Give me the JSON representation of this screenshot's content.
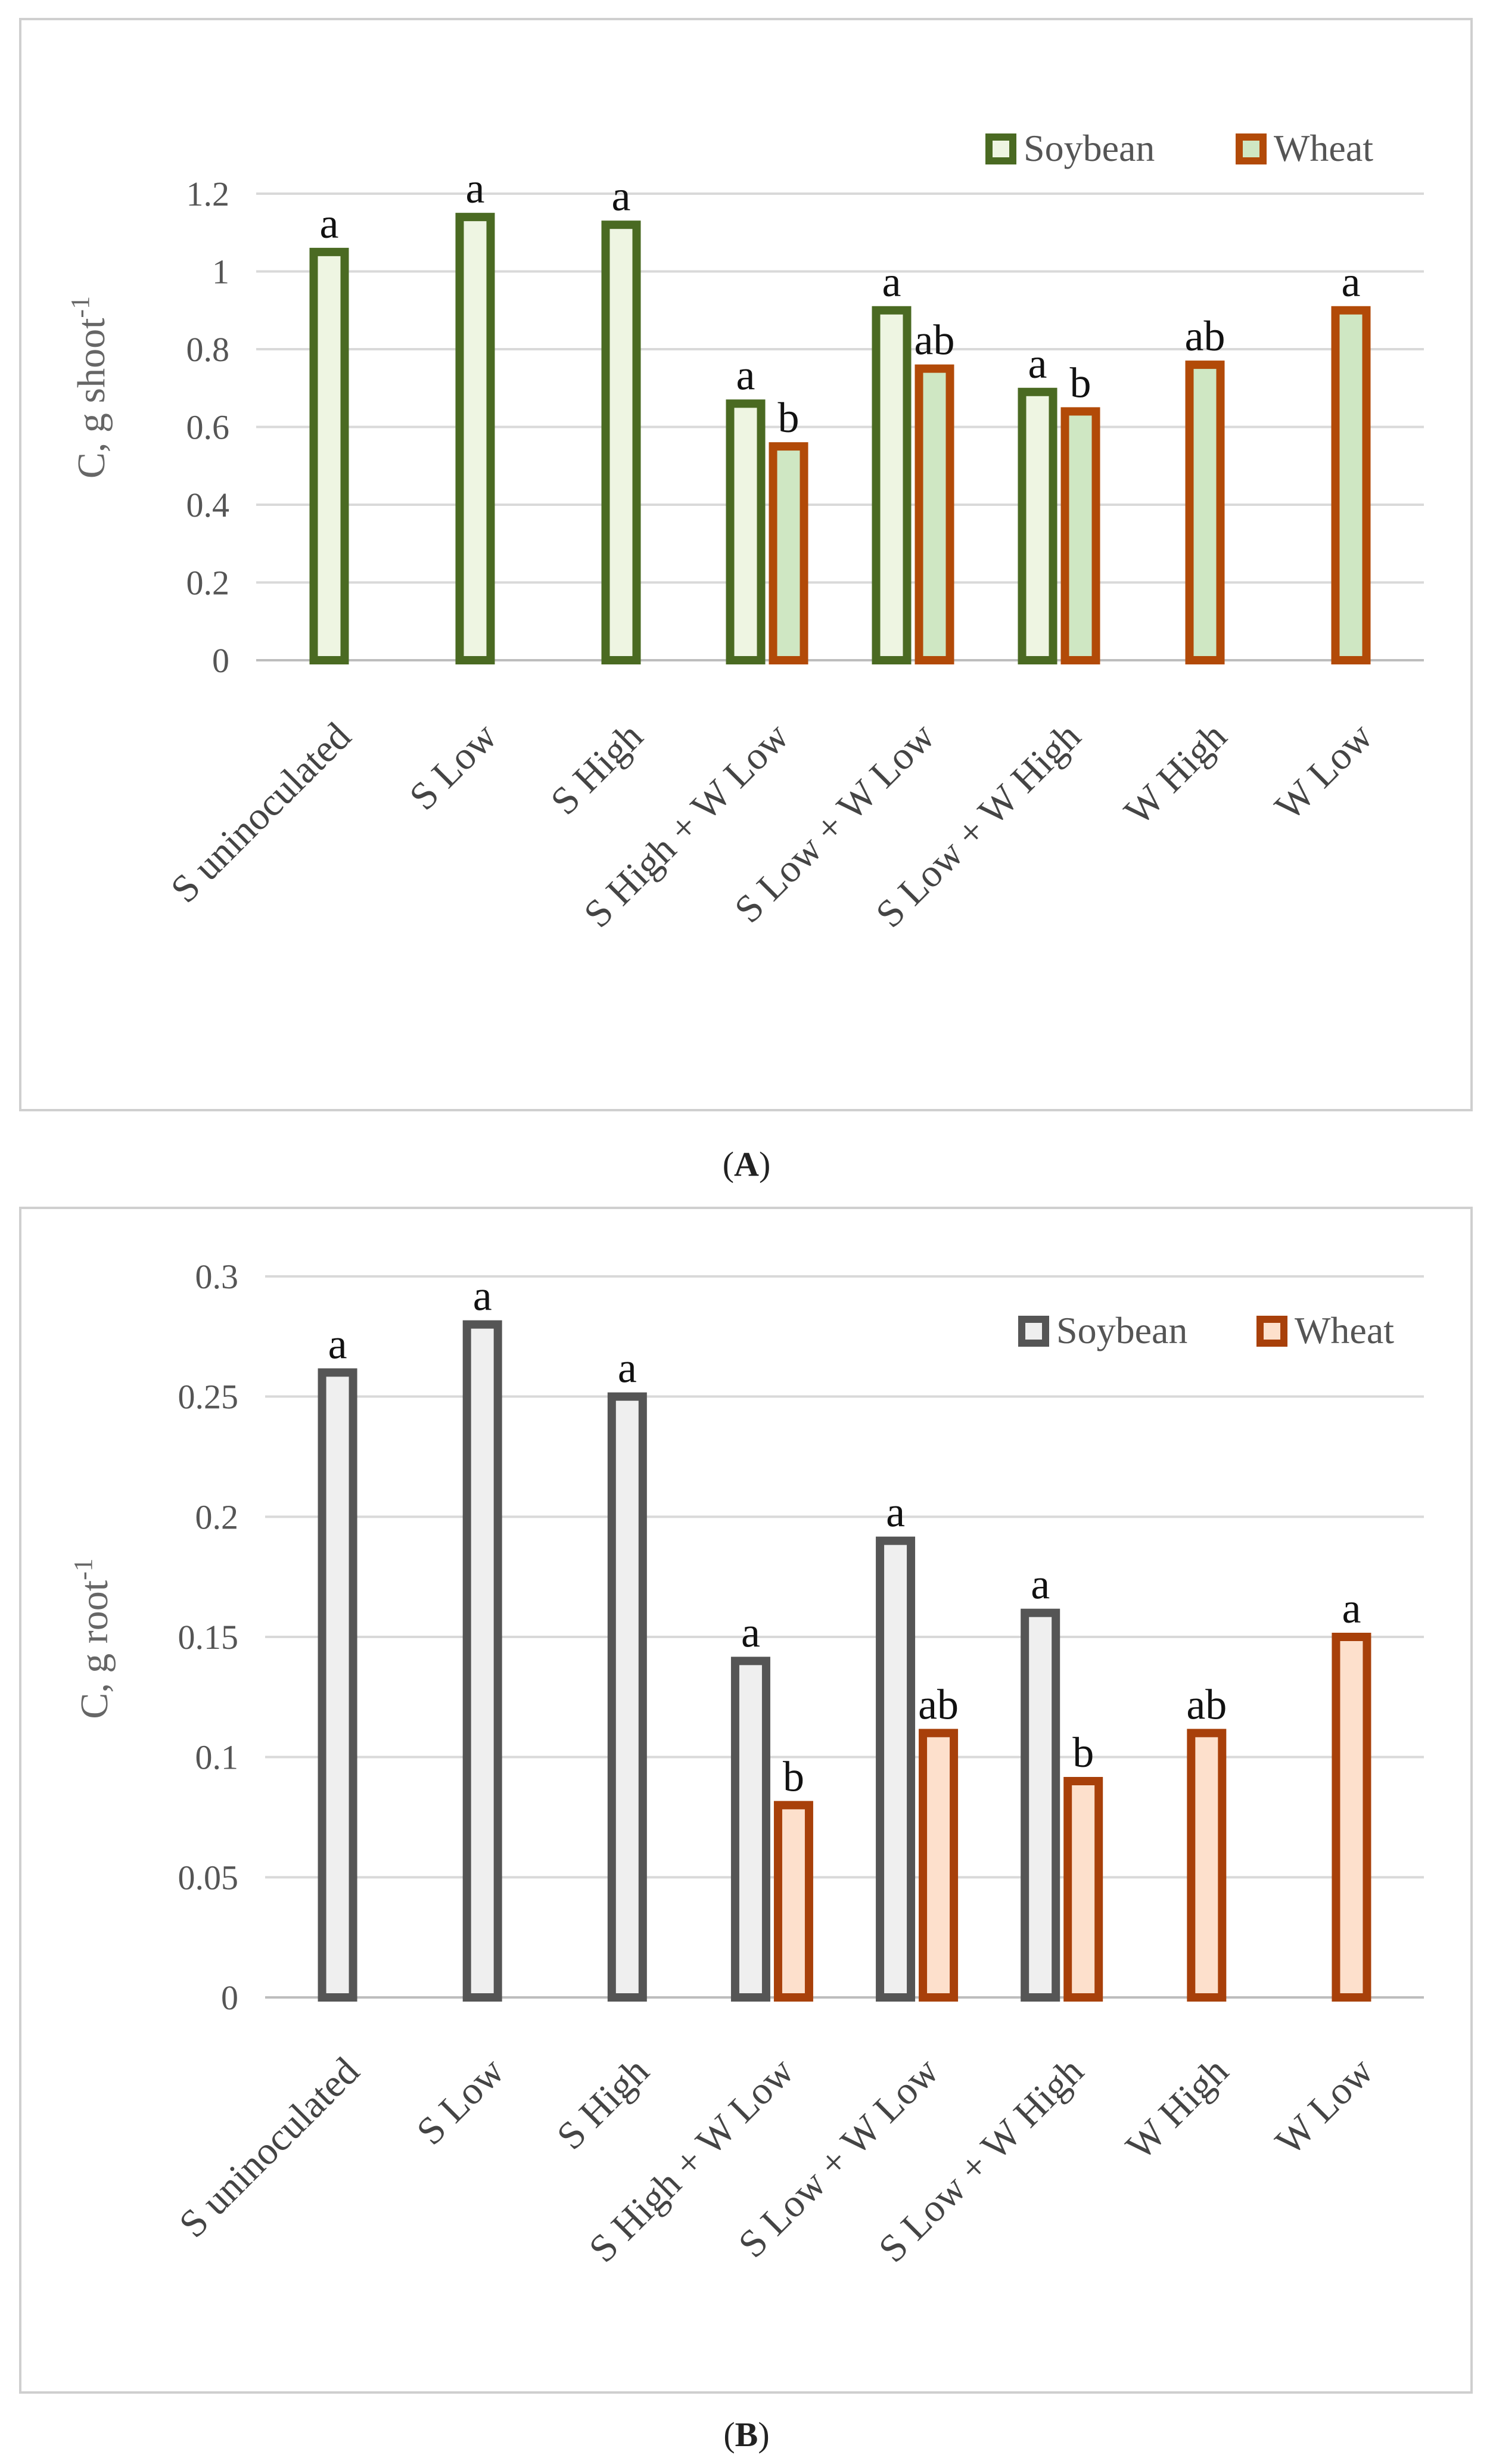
{
  "chart_data": [
    {
      "panel": "A",
      "type": "bar",
      "title": "",
      "xlabel": "",
      "ylabel": "C, g shoot",
      "ylabel_sup": "-1",
      "ylim": [
        0,
        1.2
      ],
      "yticks": [
        "0",
        "0.2",
        "0.4",
        "0.6",
        "0.8",
        "1",
        "1.2"
      ],
      "yticks_values": [
        0,
        0.2,
        0.4,
        0.6,
        0.8,
        1,
        1.2
      ],
      "grid": true,
      "legend_position": "top-right",
      "categories": [
        "S uninoculated",
        "S Low",
        "S High",
        "S High + W Low",
        "S Low + W Low",
        "S Low + W High",
        "W High",
        "W Low"
      ],
      "series": [
        {
          "name": "Soybean",
          "stroke": "#4a6a22",
          "fill": "#eef5e2",
          "values": [
            1.05,
            1.14,
            1.12,
            0.66,
            0.9,
            0.69,
            null,
            null
          ],
          "labels": [
            "a",
            "a",
            "a",
            "a",
            "a",
            "a",
            null,
            null
          ]
        },
        {
          "name": "Wheat",
          "stroke": "#b24a08",
          "fill": "#cfe7c3",
          "values": [
            null,
            null,
            null,
            0.55,
            0.75,
            0.64,
            0.76,
            0.9
          ],
          "labels": [
            null,
            null,
            null,
            "b",
            "ab",
            "b",
            "ab",
            "a"
          ]
        }
      ],
      "caption": "A"
    },
    {
      "panel": "B",
      "type": "bar",
      "title": "",
      "xlabel": "",
      "ylabel": "C, g root",
      "ylabel_sup": "-1",
      "ylim": [
        0,
        0.3
      ],
      "yticks": [
        "0",
        "0.05",
        "0.1",
        "0.15",
        "0.2",
        "0.25",
        "0.3"
      ],
      "yticks_values": [
        0,
        0.05,
        0.1,
        0.15,
        0.2,
        0.25,
        0.3
      ],
      "grid": true,
      "legend_position": "top-right",
      "categories": [
        "S uninoculated",
        "S Low",
        "S High",
        "S High + W Low",
        "S Low + W Low",
        "S Low + W High",
        "W High",
        "W Low"
      ],
      "series": [
        {
          "name": "Soybean",
          "stroke": "#555555",
          "fill": "#efefef",
          "values": [
            0.26,
            0.28,
            0.25,
            0.14,
            0.19,
            0.16,
            null,
            null
          ],
          "labels": [
            "a",
            "a",
            "a",
            "a",
            "a",
            "a",
            null,
            null
          ]
        },
        {
          "name": "Wheat",
          "stroke": "#a8400a",
          "fill": "#fde0cc",
          "values": [
            null,
            null,
            null,
            0.08,
            0.11,
            0.09,
            0.11,
            0.15
          ],
          "labels": [
            null,
            null,
            null,
            "b",
            "ab",
            "b",
            "ab",
            "a"
          ]
        }
      ],
      "caption": "B"
    }
  ]
}
